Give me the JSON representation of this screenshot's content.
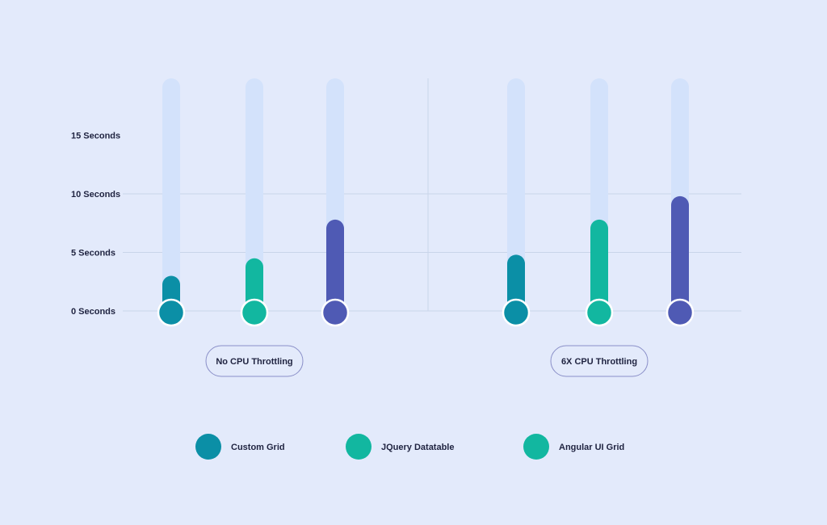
{
  "chart_data": {
    "type": "bar",
    "categories": [
      "No CPU Throttling",
      "6X CPU Throttling"
    ],
    "series": [
      {
        "name": "Custom Grid",
        "values": [
          3,
          4.8
        ]
      },
      {
        "name": "JQuery Datatable",
        "values": [
          4.5,
          7.8
        ]
      },
      {
        "name": "Angular UI Grid",
        "values": [
          7.8,
          9.8
        ]
      }
    ],
    "series_colors": [
      "#0b8fa6",
      "#12b7a0",
      "#4f5ab4"
    ],
    "legend_colors": [
      "#0b8fa6",
      "#12b7a0",
      "#12b7a0"
    ],
    "yticks": [
      {
        "value": 0,
        "label": "0 Seconds"
      },
      {
        "value": 5,
        "label": "5 Seconds"
      },
      {
        "value": 10,
        "label": "10 Seconds"
      },
      {
        "value": 15,
        "label": "15 Seconds"
      }
    ],
    "ylim": [
      0,
      20
    ],
    "track_color": "#d3e2fb",
    "grid": true,
    "legend_position": "bottom-center"
  }
}
